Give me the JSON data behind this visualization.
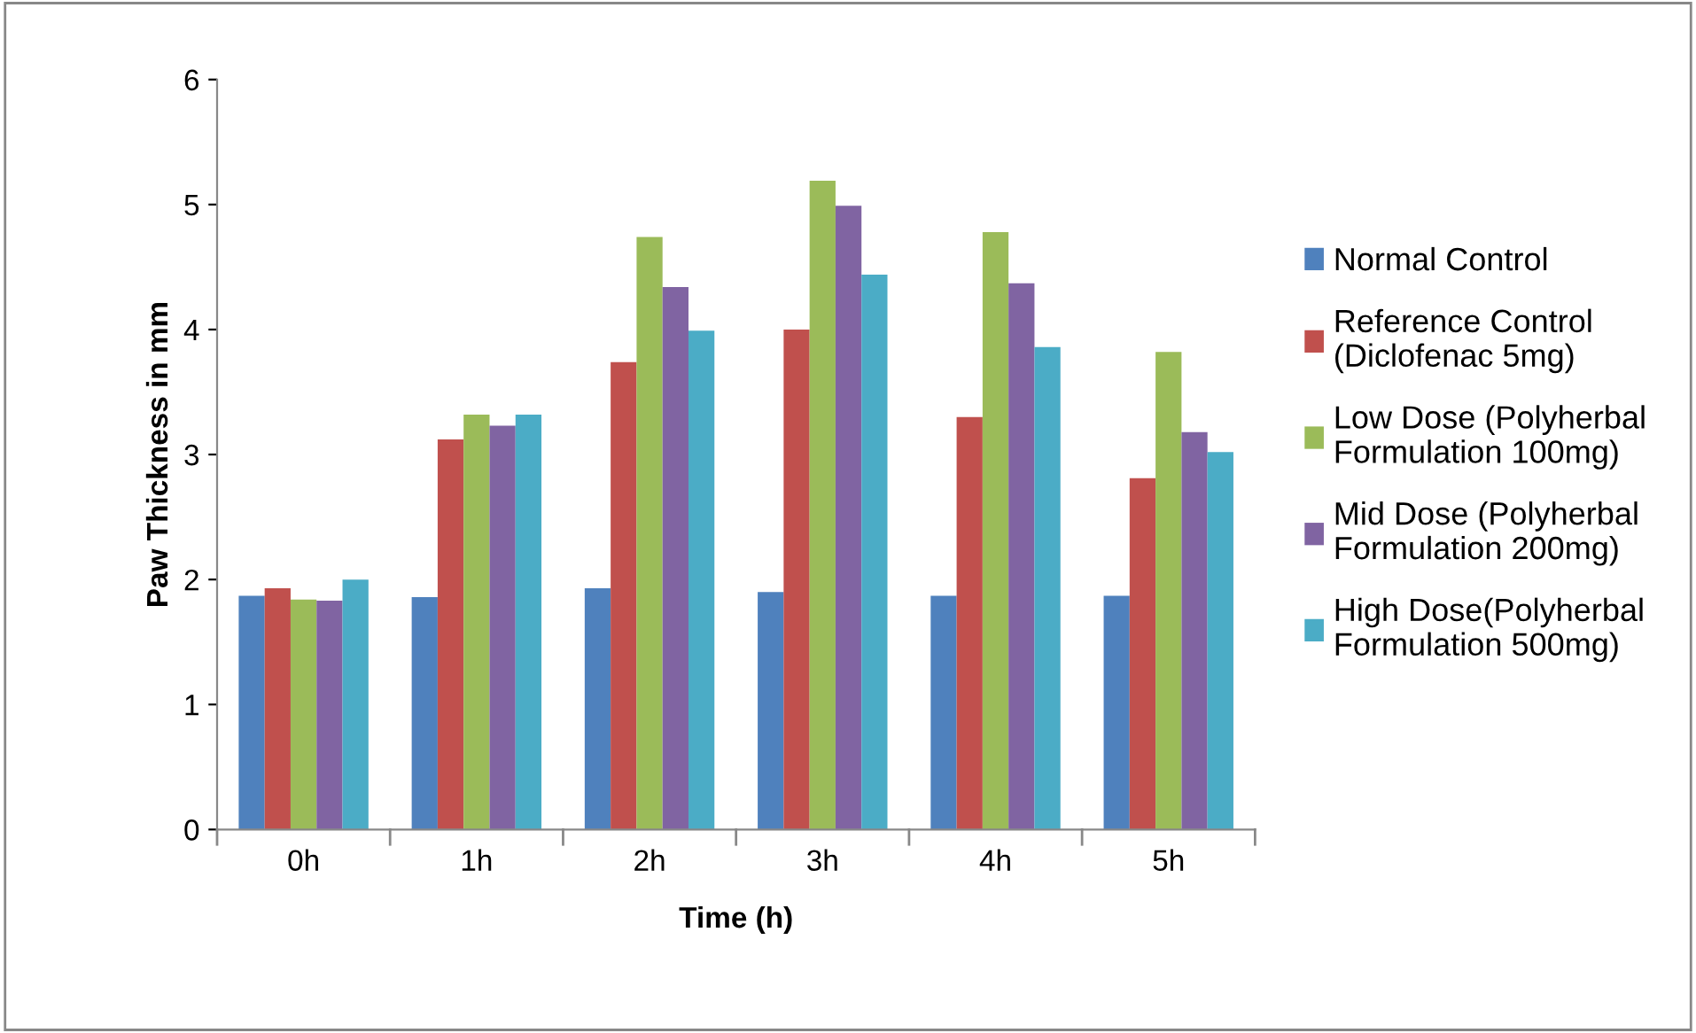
{
  "chart_data": {
    "type": "bar",
    "xlabel": "Time (h)",
    "ylabel": "Paw Thickness in mm",
    "categories": [
      "0h",
      "1h",
      "2h",
      "3h",
      "4h",
      "5h"
    ],
    "series": [
      {
        "name": "Normal Control",
        "color": "#4f81bd",
        "values": [
          1.87,
          1.86,
          1.93,
          1.9,
          1.87,
          1.87
        ]
      },
      {
        "name": "Reference Control\n(Diclofenac 5mg)",
        "color": "#c0504d",
        "values": [
          1.93,
          3.12,
          3.74,
          4.0,
          3.3,
          2.81
        ]
      },
      {
        "name": "Low Dose (Polyherbal\nFormulation 100mg)",
        "color": "#9bbb59",
        "values": [
          1.84,
          3.32,
          4.74,
          5.19,
          4.78,
          3.82
        ]
      },
      {
        "name": "Mid Dose (Polyherbal\nFormulation 200mg)",
        "color": "#8064a2",
        "values": [
          1.83,
          3.23,
          4.34,
          4.99,
          4.37,
          3.18
        ]
      },
      {
        "name": "High Dose(Polyherbal\nFormulation 500mg)",
        "color": "#4bacc6",
        "values": [
          2.0,
          3.32,
          3.99,
          4.44,
          3.86,
          3.02
        ]
      }
    ],
    "ylim": [
      0,
      6
    ],
    "yticks": [
      0,
      1,
      2,
      3,
      4,
      5,
      6
    ],
    "grid": false,
    "legend": "right"
  }
}
